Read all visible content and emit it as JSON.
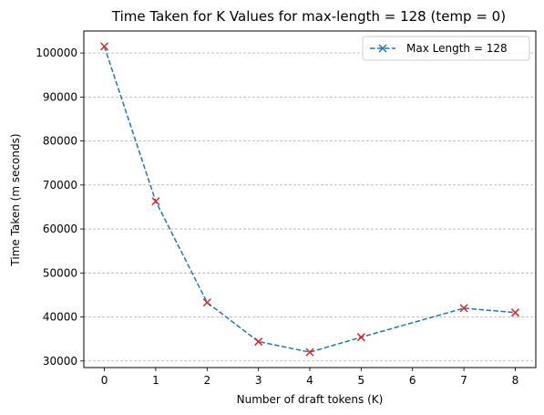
{
  "chart_data": {
    "type": "line",
    "title": "Time Taken for K Values for max-length = 128 (temp = 0)",
    "xlabel": "Number of draft tokens (K)",
    "ylabel": "Time Taken (m seconds)",
    "x": [
      0,
      1,
      2,
      3,
      4,
      5,
      7,
      8
    ],
    "series": [
      {
        "name": "Max Length = 128",
        "values": [
          101500,
          66300,
          43300,
          34400,
          32000,
          35400,
          42000,
          41000
        ],
        "line_color": "#1f77b4",
        "marker_color": "#d62728",
        "line_style": "dashed",
        "marker": "x"
      }
    ],
    "xlim": [
      -0.4,
      8.4
    ],
    "ylim": [
      28500,
      105000
    ],
    "xticks": [
      0,
      1,
      2,
      3,
      4,
      5,
      6,
      7,
      8
    ],
    "yticks": [
      30000,
      40000,
      50000,
      60000,
      70000,
      80000,
      90000,
      100000
    ],
    "grid": "y-dashed",
    "legend_position": "top-right"
  }
}
